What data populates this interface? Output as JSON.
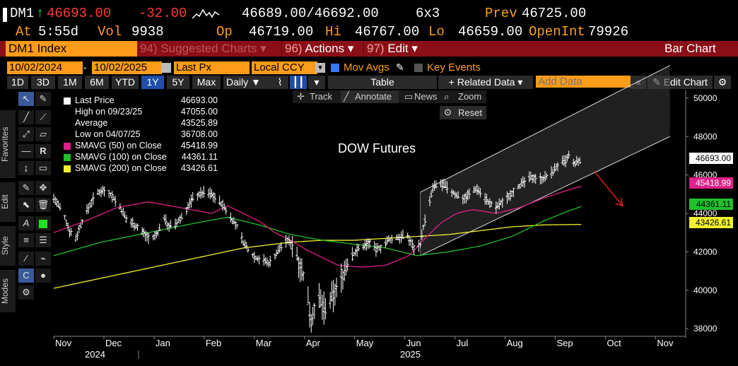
{
  "quote": {
    "ticker": "DM1",
    "arrow": "↑",
    "last": "46693.00",
    "change": "-32.00",
    "bid_ask": "46689.00/46692.00",
    "size": "6x3",
    "prev_label": "Prev",
    "prev": "46725.00",
    "at_label": "At",
    "time": "5:55d",
    "vol_label": "Vol",
    "vol": "9938",
    "op_label": "Op",
    "op": "46719.00",
    "hi_label": "Hi",
    "hi": "46767.00",
    "lo_label": "Lo",
    "lo": "46659.00",
    "oi_label": "OpenInt",
    "oi": "79926"
  },
  "cmdbar": {
    "security": "DM1 Index",
    "suggested_num": "94)",
    "suggested": "Suggested Charts",
    "actions_num": "96)",
    "actions": "Actions",
    "edit_num": "97)",
    "edit": "Edit",
    "chart_type": "Bar Chart"
  },
  "toolbar": {
    "start_date": "10/02/2024",
    "end_date": "10/02/2025",
    "field": "Last Px",
    "currency": "Local CCY",
    "mov_avgs": "Mov Avgs",
    "key_events": "Key Events",
    "ranges": [
      "1D",
      "3D",
      "1M",
      "6M",
      "YTD",
      "1Y",
      "5Y",
      "Max"
    ],
    "selected_range": "1Y",
    "periodicity": "Daily",
    "table": "Table",
    "related": "+ Related Data",
    "add_data_placeholder": "Add Data",
    "edit_chart": "Edit Chart"
  },
  "chart_tools": {
    "track": "Track",
    "annotate": "Annotate",
    "news": "News",
    "zoom": "Zoom",
    "reset": "Reset"
  },
  "side_tabs": [
    "Favorites",
    "Edit",
    "Style",
    "Modes"
  ],
  "legend": [
    {
      "label": "Last Price",
      "value": "46693.00",
      "color": "#ffffff"
    },
    {
      "label": "High on 09/23/25",
      "value": "47055.00",
      "color": ""
    },
    {
      "label": "Average",
      "value": "43525.89",
      "color": ""
    },
    {
      "label": "Low on 04/07/25",
      "value": "36708.00",
      "color": ""
    },
    {
      "label": "SMAVG (50)  on Close",
      "value": "45418.99",
      "color": "#e0218a"
    },
    {
      "label": "SMAVG (100)  on Close",
      "value": "44361.11",
      "color": "#22c02a"
    },
    {
      "label": "SMAVG (200)  on Close",
      "value": "43426.61",
      "color": "#f0f030"
    }
  ],
  "annotation_text": "DOW Futures",
  "chart_data": {
    "type": "bar",
    "ylim": [
      37600,
      50400
    ],
    "y_ticks": [
      "50000",
      "48000",
      "46000",
      "44000",
      "42000",
      "40000",
      "38000"
    ],
    "y_tick_values": [
      50000,
      48000,
      46000,
      44000,
      42000,
      40000,
      38000
    ],
    "x_months": [
      "Nov",
      "Dec",
      "Jan",
      "Feb",
      "Mar",
      "Apr",
      "May",
      "Jun",
      "Jul",
      "Aug",
      "Sep",
      "Oct",
      "Nov"
    ],
    "x_years": [
      "2024",
      "2025"
    ],
    "price_labels": [
      {
        "value": "46693.00",
        "color": "#ffffff",
        "text_color": "#000000"
      },
      {
        "value": "45418.99",
        "color": "#e0218a",
        "text_color": "#ffffff"
      },
      {
        "value": "44361.11",
        "color": "#22c02a",
        "text_color": "#000000"
      },
      {
        "value": "43426.61",
        "color": "#f0f030",
        "text_color": "#000000"
      }
    ],
    "price_anchors": [
      [
        0,
        44800
      ],
      [
        3,
        44400
      ],
      [
        6,
        44000
      ],
      [
        10,
        43100
      ],
      [
        14,
        42700
      ],
      [
        18,
        43600
      ],
      [
        22,
        44300
      ],
      [
        26,
        44900
      ],
      [
        30,
        45200
      ],
      [
        34,
        45200
      ],
      [
        38,
        44800
      ],
      [
        42,
        44300
      ],
      [
        46,
        43700
      ],
      [
        50,
        43500
      ],
      [
        54,
        43200
      ],
      [
        58,
        42900
      ],
      [
        62,
        42600
      ],
      [
        66,
        43000
      ],
      [
        70,
        43800
      ],
      [
        72,
        43400
      ],
      [
        76,
        43300
      ],
      [
        80,
        43700
      ],
      [
        84,
        44200
      ],
      [
        88,
        44800
      ],
      [
        92,
        45000
      ],
      [
        96,
        45100
      ],
      [
        100,
        45000
      ],
      [
        104,
        44700
      ],
      [
        108,
        44300
      ],
      [
        112,
        43800
      ],
      [
        116,
        43300
      ],
      [
        120,
        42500
      ],
      [
        124,
        42000
      ],
      [
        128,
        41700
      ],
      [
        132,
        41600
      ],
      [
        136,
        41400
      ],
      [
        140,
        41800
      ],
      [
        144,
        42300
      ],
      [
        148,
        42600
      ],
      [
        152,
        42300
      ],
      [
        156,
        41300
      ],
      [
        160,
        40100
      ],
      [
        163,
        38400
      ],
      [
        165,
        39100
      ],
      [
        168,
        39500
      ],
      [
        172,
        38900
      ],
      [
        176,
        39600
      ],
      [
        180,
        40200
      ],
      [
        184,
        41000
      ],
      [
        188,
        41700
      ],
      [
        192,
        42100
      ],
      [
        196,
        42300
      ],
      [
        200,
        42500
      ],
      [
        204,
        42100
      ],
      [
        208,
        42300
      ],
      [
        212,
        42600
      ],
      [
        216,
        42700
      ],
      [
        220,
        42800
      ],
      [
        224,
        42800
      ],
      [
        228,
        42200
      ],
      [
        232,
        42400
      ],
      [
        234,
        43300
      ],
      [
        236,
        44000
      ],
      [
        238,
        44600
      ],
      [
        240,
        45300
      ],
      [
        244,
        45600
      ],
      [
        248,
        45400
      ],
      [
        252,
        45100
      ],
      [
        256,
        44900
      ],
      [
        260,
        44800
      ],
      [
        264,
        45100
      ],
      [
        268,
        45300
      ],
      [
        272,
        44900
      ],
      [
        276,
        44500
      ],
      [
        280,
        44300
      ],
      [
        284,
        44600
      ],
      [
        288,
        44900
      ],
      [
        292,
        45300
      ],
      [
        296,
        45500
      ],
      [
        300,
        45800
      ],
      [
        304,
        45900
      ],
      [
        308,
        45800
      ],
      [
        312,
        45900
      ],
      [
        316,
        46200
      ],
      [
        320,
        46600
      ],
      [
        324,
        46700
      ],
      [
        326,
        47000
      ],
      [
        328,
        46500
      ],
      [
        332,
        46700
      ],
      [
        334,
        46693
      ]
    ],
    "sma50": [
      [
        0,
        43000
      ],
      [
        20,
        43600
      ],
      [
        40,
        44300
      ],
      [
        60,
        44600
      ],
      [
        80,
        44300
      ],
      [
        100,
        44000
      ],
      [
        110,
        44400
      ],
      [
        120,
        44000
      ],
      [
        130,
        43600
      ],
      [
        140,
        43000
      ],
      [
        150,
        42600
      ],
      [
        160,
        42100
      ],
      [
        170,
        41700
      ],
      [
        180,
        41300
      ],
      [
        195,
        41200
      ],
      [
        210,
        41300
      ],
      [
        225,
        41800
      ],
      [
        235,
        42700
      ],
      [
        245,
        43500
      ],
      [
        255,
        44000
      ],
      [
        265,
        44200
      ],
      [
        280,
        44000
      ],
      [
        295,
        44300
      ],
      [
        310,
        44800
      ],
      [
        325,
        45200
      ],
      [
        334,
        45418.99
      ]
    ],
    "sma100": [
      [
        0,
        41800
      ],
      [
        30,
        42500
      ],
      [
        60,
        43000
      ],
      [
        90,
        43500
      ],
      [
        110,
        43800
      ],
      [
        130,
        43400
      ],
      [
        150,
        42900
      ],
      [
        170,
        42600
      ],
      [
        190,
        42400
      ],
      [
        210,
        42200
      ],
      [
        230,
        41800
      ],
      [
        250,
        42000
      ],
      [
        270,
        42300
      ],
      [
        290,
        42800
      ],
      [
        310,
        43600
      ],
      [
        325,
        44100
      ],
      [
        334,
        44361.11
      ]
    ],
    "sma200": [
      [
        0,
        40100
      ],
      [
        40,
        40800
      ],
      [
        80,
        41500
      ],
      [
        120,
        42200
      ],
      [
        150,
        42500
      ],
      [
        170,
        42600
      ],
      [
        190,
        42600
      ],
      [
        210,
        42700
      ],
      [
        230,
        42800
      ],
      [
        250,
        42900
      ],
      [
        270,
        43100
      ],
      [
        290,
        43300
      ],
      [
        310,
        43400
      ],
      [
        334,
        43426.61
      ]
    ],
    "channel": {
      "lower_start": [
        232,
        41800
      ],
      "lower_end": [
        390,
        48000
      ],
      "upper_start": [
        232,
        45100
      ],
      "upper_end": [
        390,
        51700
      ]
    },
    "arrow": {
      "from": [
        342,
        46200
      ],
      "to": [
        360,
        44400
      ]
    }
  }
}
